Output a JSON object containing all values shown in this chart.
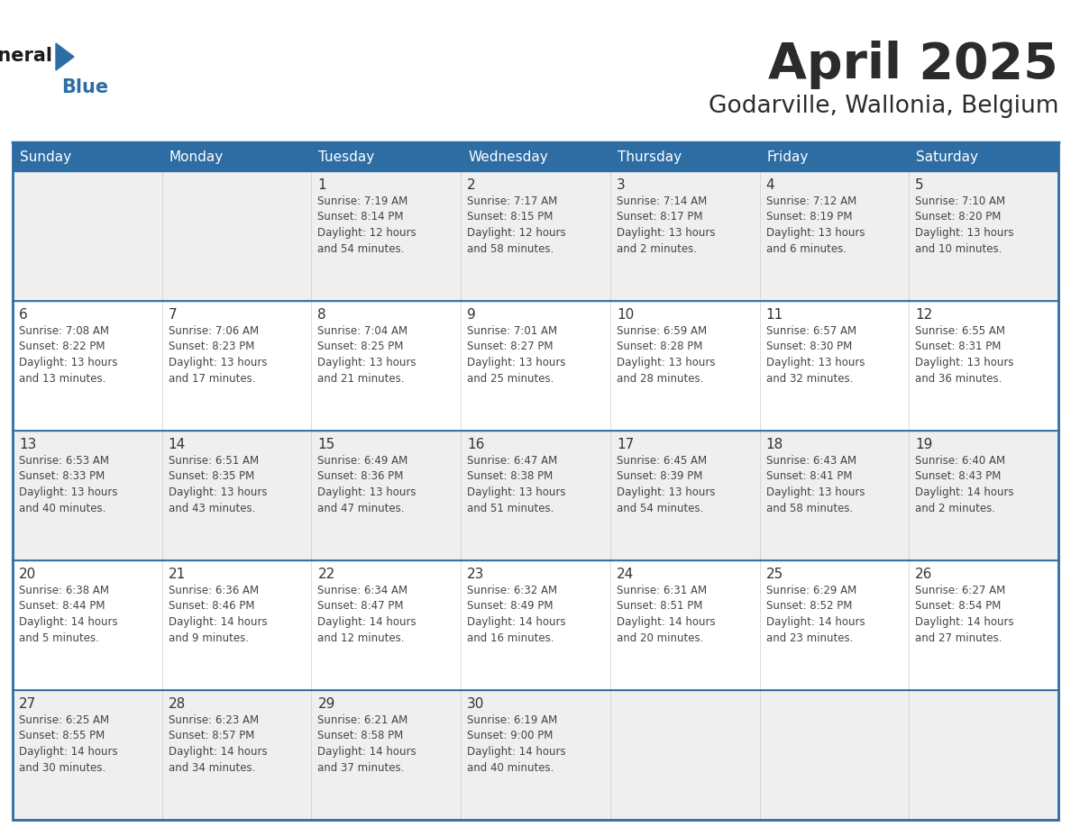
{
  "title": "April 2025",
  "subtitle": "Godarville, Wallonia, Belgium",
  "days_of_week": [
    "Sunday",
    "Monday",
    "Tuesday",
    "Wednesday",
    "Thursday",
    "Friday",
    "Saturday"
  ],
  "header_bg": "#2e6da4",
  "header_text": "#ffffff",
  "cell_bg_odd": "#efefef",
  "cell_bg_even": "#ffffff",
  "border_color": "#2e6da4",
  "text_color": "#444444",
  "day_num_color": "#333333",
  "title_color": "#2b2b2b",
  "subtitle_color": "#2b2b2b",
  "logo_general_color": "#1a1a1a",
  "logo_blue_color": "#2e6da4",
  "weeks": [
    [
      {
        "day": "",
        "info": ""
      },
      {
        "day": "",
        "info": ""
      },
      {
        "day": "1",
        "info": "Sunrise: 7:19 AM\nSunset: 8:14 PM\nDaylight: 12 hours\nand 54 minutes."
      },
      {
        "day": "2",
        "info": "Sunrise: 7:17 AM\nSunset: 8:15 PM\nDaylight: 12 hours\nand 58 minutes."
      },
      {
        "day": "3",
        "info": "Sunrise: 7:14 AM\nSunset: 8:17 PM\nDaylight: 13 hours\nand 2 minutes."
      },
      {
        "day": "4",
        "info": "Sunrise: 7:12 AM\nSunset: 8:19 PM\nDaylight: 13 hours\nand 6 minutes."
      },
      {
        "day": "5",
        "info": "Sunrise: 7:10 AM\nSunset: 8:20 PM\nDaylight: 13 hours\nand 10 minutes."
      }
    ],
    [
      {
        "day": "6",
        "info": "Sunrise: 7:08 AM\nSunset: 8:22 PM\nDaylight: 13 hours\nand 13 minutes."
      },
      {
        "day": "7",
        "info": "Sunrise: 7:06 AM\nSunset: 8:23 PM\nDaylight: 13 hours\nand 17 minutes."
      },
      {
        "day": "8",
        "info": "Sunrise: 7:04 AM\nSunset: 8:25 PM\nDaylight: 13 hours\nand 21 minutes."
      },
      {
        "day": "9",
        "info": "Sunrise: 7:01 AM\nSunset: 8:27 PM\nDaylight: 13 hours\nand 25 minutes."
      },
      {
        "day": "10",
        "info": "Sunrise: 6:59 AM\nSunset: 8:28 PM\nDaylight: 13 hours\nand 28 minutes."
      },
      {
        "day": "11",
        "info": "Sunrise: 6:57 AM\nSunset: 8:30 PM\nDaylight: 13 hours\nand 32 minutes."
      },
      {
        "day": "12",
        "info": "Sunrise: 6:55 AM\nSunset: 8:31 PM\nDaylight: 13 hours\nand 36 minutes."
      }
    ],
    [
      {
        "day": "13",
        "info": "Sunrise: 6:53 AM\nSunset: 8:33 PM\nDaylight: 13 hours\nand 40 minutes."
      },
      {
        "day": "14",
        "info": "Sunrise: 6:51 AM\nSunset: 8:35 PM\nDaylight: 13 hours\nand 43 minutes."
      },
      {
        "day": "15",
        "info": "Sunrise: 6:49 AM\nSunset: 8:36 PM\nDaylight: 13 hours\nand 47 minutes."
      },
      {
        "day": "16",
        "info": "Sunrise: 6:47 AM\nSunset: 8:38 PM\nDaylight: 13 hours\nand 51 minutes."
      },
      {
        "day": "17",
        "info": "Sunrise: 6:45 AM\nSunset: 8:39 PM\nDaylight: 13 hours\nand 54 minutes."
      },
      {
        "day": "18",
        "info": "Sunrise: 6:43 AM\nSunset: 8:41 PM\nDaylight: 13 hours\nand 58 minutes."
      },
      {
        "day": "19",
        "info": "Sunrise: 6:40 AM\nSunset: 8:43 PM\nDaylight: 14 hours\nand 2 minutes."
      }
    ],
    [
      {
        "day": "20",
        "info": "Sunrise: 6:38 AM\nSunset: 8:44 PM\nDaylight: 14 hours\nand 5 minutes."
      },
      {
        "day": "21",
        "info": "Sunrise: 6:36 AM\nSunset: 8:46 PM\nDaylight: 14 hours\nand 9 minutes."
      },
      {
        "day": "22",
        "info": "Sunrise: 6:34 AM\nSunset: 8:47 PM\nDaylight: 14 hours\nand 12 minutes."
      },
      {
        "day": "23",
        "info": "Sunrise: 6:32 AM\nSunset: 8:49 PM\nDaylight: 14 hours\nand 16 minutes."
      },
      {
        "day": "24",
        "info": "Sunrise: 6:31 AM\nSunset: 8:51 PM\nDaylight: 14 hours\nand 20 minutes."
      },
      {
        "day": "25",
        "info": "Sunrise: 6:29 AM\nSunset: 8:52 PM\nDaylight: 14 hours\nand 23 minutes."
      },
      {
        "day": "26",
        "info": "Sunrise: 6:27 AM\nSunset: 8:54 PM\nDaylight: 14 hours\nand 27 minutes."
      }
    ],
    [
      {
        "day": "27",
        "info": "Sunrise: 6:25 AM\nSunset: 8:55 PM\nDaylight: 14 hours\nand 30 minutes."
      },
      {
        "day": "28",
        "info": "Sunrise: 6:23 AM\nSunset: 8:57 PM\nDaylight: 14 hours\nand 34 minutes."
      },
      {
        "day": "29",
        "info": "Sunrise: 6:21 AM\nSunset: 8:58 PM\nDaylight: 14 hours\nand 37 minutes."
      },
      {
        "day": "30",
        "info": "Sunrise: 6:19 AM\nSunset: 9:00 PM\nDaylight: 14 hours\nand 40 minutes."
      },
      {
        "day": "",
        "info": ""
      },
      {
        "day": "",
        "info": ""
      },
      {
        "day": "",
        "info": ""
      }
    ]
  ]
}
